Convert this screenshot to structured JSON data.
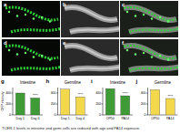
{
  "panels": [
    {
      "label": "a"
    },
    {
      "label": "b"
    },
    {
      "label": "c"
    },
    {
      "label": "d"
    },
    {
      "label": "e"
    },
    {
      "label": "f"
    }
  ],
  "chart_data": [
    {
      "type": "bar",
      "label": "g",
      "title": "Intestine",
      "y_label": "GFP intensity",
      "categories": [
        "Day 1",
        "Day 4"
      ],
      "values": [
        400,
        310
      ],
      "color": "#3f9b35",
      "ylim": [
        0,
        500
      ],
      "yticks": [
        0,
        200,
        400
      ],
      "annotation": "****"
    },
    {
      "type": "bar",
      "label": "h",
      "title": "Germline",
      "categories": [
        "Day 1",
        "Day 4"
      ],
      "values": [
        470,
        330
      ],
      "color": "#f3d84b",
      "ylim": [
        0,
        500
      ],
      "yticks": [
        0,
        200,
        400
      ],
      "annotation": "****"
    },
    {
      "type": "bar",
      "label": "i",
      "title": "Intestine",
      "categories": [
        "OP50",
        "PA14"
      ],
      "values": [
        480,
        350
      ],
      "color": "#3f9b35",
      "ylim": [
        0,
        500
      ],
      "yticks": [
        0,
        200,
        400
      ],
      "annotation": "****"
    },
    {
      "type": "bar",
      "label": "j",
      "title": "Germline",
      "categories": [
        "OP50",
        "PA14"
      ],
      "values": [
        460,
        300
      ],
      "color": "#f3d84b",
      "ylim": [
        0,
        500
      ],
      "yticks": [
        0,
        200,
        400
      ],
      "annotation": "****"
    }
  ],
  "caption": "TCER-1 levels in intestine and germ cells are reduced with age and PA14 exposure."
}
